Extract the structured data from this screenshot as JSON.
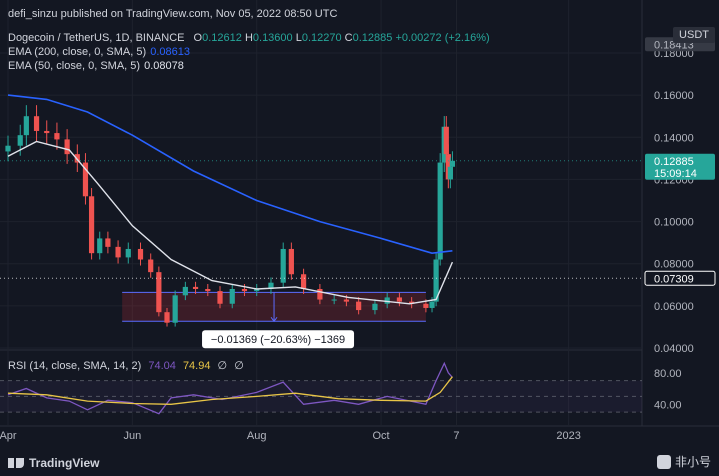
{
  "credit": "defi_sinzu published on TradingView.com, Nov 05, 2022 08:50 UTC",
  "legend": {
    "symbol": "Dogecoin / TetherUS, 1D, BINANCE",
    "o_label": "O",
    "o": "0.12612",
    "h_label": "H",
    "h": "0.13600",
    "l_label": "L",
    "l": "0.12270",
    "c_label": "C",
    "c": "0.12885",
    "change": "+0.00272 (+2.16%)",
    "ema200_label": "EMA (200, close, 0, SMA, 5)",
    "ema200_value": "0.08613",
    "ema50_label": "EMA (50, close, 0, SMA, 5)",
    "ema50_value": "0.08078"
  },
  "currency": "USDT",
  "rsi_legend": {
    "label": "RSI (14, close, SMA, 14, 2)",
    "value1": "74.04",
    "value2": "74.94",
    "empty1": "∅",
    "empty2": "∅"
  },
  "footer": {
    "brand": "TradingView",
    "watermark": "非小号"
  },
  "colors": {
    "background": "#131722",
    "up": "#26a69a",
    "down": "#ef5350",
    "ema200": "#2962ff",
    "ema50": "#e0e3eb",
    "rsi": "#7e57c2",
    "rsi_ma": "#e8c547",
    "range_box": "#f23645",
    "text": "#d1d4dc"
  },
  "chart_data": [
    {
      "type": "candlestick",
      "title": "Dogecoin / TetherUS, 1D, BINANCE",
      "ylim": [
        0.04,
        0.18
      ],
      "y_ticks": [
        "0.18000",
        "0.16000",
        "0.14000",
        "0.12000",
        "0.10000",
        "0.08000",
        "0.06000",
        "0.04000"
      ],
      "x_ticks": [
        "Apr",
        "Jun",
        "Aug",
        "Oct",
        "7",
        "2023"
      ],
      "x_tick_dates": [
        "2022-04-01",
        "2022-06-01",
        "2022-08-01",
        "2022-10-01",
        "2022-11-07",
        "2023-01-01"
      ],
      "x_range": [
        "2022-04-01",
        "2023-02-06"
      ],
      "price_markers": [
        {
          "label": "0.12885",
          "sub": "15:09:14",
          "value": 0.12885,
          "color": "#26a69a"
        },
        {
          "label": "0.07309",
          "value": 0.07309,
          "color": "#ffffff"
        }
      ],
      "top_marker": {
        "label": "0.18413",
        "value": 0.18413
      },
      "range_measure": {
        "label": "−0.01369 (−20.63%) −1369",
        "top": 0.0664,
        "bottom": 0.0527,
        "from": "2022-05-27",
        "to": "2022-10-23"
      },
      "close_series": [
        [
          "2022-04-01",
          0.136
        ],
        [
          "2022-04-07",
          0.141
        ],
        [
          "2022-04-10",
          0.15
        ],
        [
          "2022-04-15",
          0.143
        ],
        [
          "2022-04-20",
          0.142
        ],
        [
          "2022-04-25",
          0.139
        ],
        [
          "2022-04-30",
          0.132
        ],
        [
          "2022-05-05",
          0.128
        ],
        [
          "2022-05-09",
          0.112
        ],
        [
          "2022-05-12",
          0.085
        ],
        [
          "2022-05-16",
          0.092
        ],
        [
          "2022-05-20",
          0.088
        ],
        [
          "2022-05-25",
          0.083
        ],
        [
          "2022-05-30",
          0.087
        ],
        [
          "2022-06-05",
          0.082
        ],
        [
          "2022-06-10",
          0.076
        ],
        [
          "2022-06-14",
          0.057
        ],
        [
          "2022-06-18",
          0.052
        ],
        [
          "2022-06-22",
          0.065
        ],
        [
          "2022-06-27",
          0.069
        ],
        [
          "2022-07-02",
          0.068
        ],
        [
          "2022-07-08",
          0.067
        ],
        [
          "2022-07-14",
          0.061
        ],
        [
          "2022-07-20",
          0.068
        ],
        [
          "2022-07-26",
          0.067
        ],
        [
          "2022-08-01",
          0.068
        ],
        [
          "2022-08-08",
          0.071
        ],
        [
          "2022-08-14",
          0.087
        ],
        [
          "2022-08-18",
          0.075
        ],
        [
          "2022-08-24",
          0.068
        ],
        [
          "2022-09-01",
          0.063
        ],
        [
          "2022-09-08",
          0.063
        ],
        [
          "2022-09-14",
          0.062
        ],
        [
          "2022-09-20",
          0.058
        ],
        [
          "2022-09-28",
          0.061
        ],
        [
          "2022-10-04",
          0.064
        ],
        [
          "2022-10-10",
          0.062
        ],
        [
          "2022-10-16",
          0.061
        ],
        [
          "2022-10-23",
          0.059
        ],
        [
          "2022-10-26",
          0.062
        ],
        [
          "2022-10-28",
          0.082
        ],
        [
          "2022-10-30",
          0.128
        ],
        [
          "2022-11-01",
          0.145
        ],
        [
          "2022-11-02",
          0.132
        ],
        [
          "2022-11-03",
          0.12
        ],
        [
          "2022-11-04",
          0.126
        ],
        [
          "2022-11-05",
          0.12885
        ]
      ],
      "ema200": [
        [
          "2022-04-01",
          0.16
        ],
        [
          "2022-04-20",
          0.158
        ],
        [
          "2022-05-10",
          0.152
        ],
        [
          "2022-06-01",
          0.141
        ],
        [
          "2022-07-01",
          0.124
        ],
        [
          "2022-08-01",
          0.11
        ],
        [
          "2022-09-01",
          0.1
        ],
        [
          "2022-10-01",
          0.092
        ],
        [
          "2022-10-26",
          0.085
        ],
        [
          "2022-11-05",
          0.08613
        ]
      ],
      "ema50": [
        [
          "2022-04-01",
          0.131
        ],
        [
          "2022-04-15",
          0.138
        ],
        [
          "2022-05-01",
          0.134
        ],
        [
          "2022-05-15",
          0.118
        ],
        [
          "2022-06-01",
          0.098
        ],
        [
          "2022-06-20",
          0.082
        ],
        [
          "2022-07-10",
          0.072
        ],
        [
          "2022-08-01",
          0.068
        ],
        [
          "2022-08-20",
          0.069
        ],
        [
          "2022-09-15",
          0.064
        ],
        [
          "2022-10-15",
          0.061
        ],
        [
          "2022-10-28",
          0.063
        ],
        [
          "2022-11-05",
          0.08078
        ]
      ]
    },
    {
      "type": "line",
      "title": "RSI (14, close, SMA, 14, 2)",
      "ylim": [
        20,
        100
      ],
      "y_ticks": [
        "80.00",
        "40.00"
      ],
      "bands": [
        70,
        50,
        30
      ],
      "series": [
        {
          "name": "RSI",
          "color": "#7e57c2",
          "values": [
            [
              "2022-04-01",
              52
            ],
            [
              "2022-04-10",
              60
            ],
            [
              "2022-04-20",
              48
            ],
            [
              "2022-05-01",
              44
            ],
            [
              "2022-05-10",
              33
            ],
            [
              "2022-05-20",
              45
            ],
            [
              "2022-06-01",
              42
            ],
            [
              "2022-06-14",
              28
            ],
            [
              "2022-06-20",
              48
            ],
            [
              "2022-07-01",
              52
            ],
            [
              "2022-07-15",
              46
            ],
            [
              "2022-08-01",
              55
            ],
            [
              "2022-08-14",
              68
            ],
            [
              "2022-08-24",
              40
            ],
            [
              "2022-09-08",
              45
            ],
            [
              "2022-09-20",
              40
            ],
            [
              "2022-10-04",
              50
            ],
            [
              "2022-10-23",
              40
            ],
            [
              "2022-10-28",
              70
            ],
            [
              "2022-11-01",
              92
            ],
            [
              "2022-11-03",
              80
            ],
            [
              "2022-11-05",
              74.04
            ]
          ]
        },
        {
          "name": "RSI-based MA",
          "color": "#e8c547",
          "values": [
            [
              "2022-04-01",
              54
            ],
            [
              "2022-04-20",
              52
            ],
            [
              "2022-05-10",
              44
            ],
            [
              "2022-06-01",
              41
            ],
            [
              "2022-06-20",
              40
            ],
            [
              "2022-07-10",
              46
            ],
            [
              "2022-08-01",
              50
            ],
            [
              "2022-08-20",
              54
            ],
            [
              "2022-09-10",
              47
            ],
            [
              "2022-10-01",
              45
            ],
            [
              "2022-10-23",
              44
            ],
            [
              "2022-10-30",
              55
            ],
            [
              "2022-11-05",
              74.94
            ]
          ]
        }
      ]
    }
  ]
}
